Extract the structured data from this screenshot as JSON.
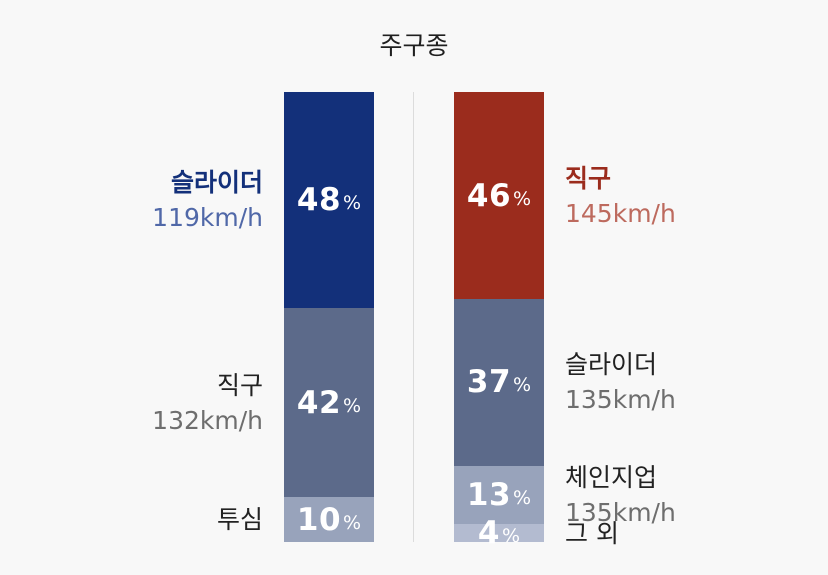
{
  "title": "주구종",
  "colors": {
    "navy": "#13307a",
    "slate": "#5c6a8a",
    "gray_blue": "#98a3bb",
    "light_gray_blue": "#b3bbd0",
    "red": "#9b2c1d",
    "text_dark": "#222222",
    "text_gray": "#6e6e6e",
    "left_highlight_speed": "#5068a8",
    "right_highlight_speed": "#bd6a5e"
  },
  "chart_data": [
    {
      "type": "bar",
      "stacked": true,
      "percent_suffix": "%",
      "segments": [
        {
          "pitch": "슬라이더",
          "speed": "119km/h",
          "percent": 48,
          "color": "#13307a",
          "highlight": true
        },
        {
          "pitch": "직구",
          "speed": "132km/h",
          "percent": 42,
          "color": "#5c6a8a",
          "highlight": false
        },
        {
          "pitch": "투심",
          "speed": "",
          "percent": 10,
          "color": "#98a3bb",
          "highlight": false
        }
      ]
    },
    {
      "type": "bar",
      "stacked": true,
      "percent_suffix": "%",
      "segments": [
        {
          "pitch": "직구",
          "speed": "145km/h",
          "percent": 46,
          "color": "#9b2c1d",
          "highlight": true
        },
        {
          "pitch": "슬라이더",
          "speed": "135km/h",
          "percent": 37,
          "color": "#5c6a8a",
          "highlight": false
        },
        {
          "pitch": "체인지업",
          "speed": "135km/h",
          "percent": 13,
          "color": "#98a3bb",
          "highlight": false
        },
        {
          "pitch": "그 외",
          "speed": "",
          "percent": 4,
          "color": "#b3bbd0",
          "highlight": false
        }
      ]
    }
  ]
}
